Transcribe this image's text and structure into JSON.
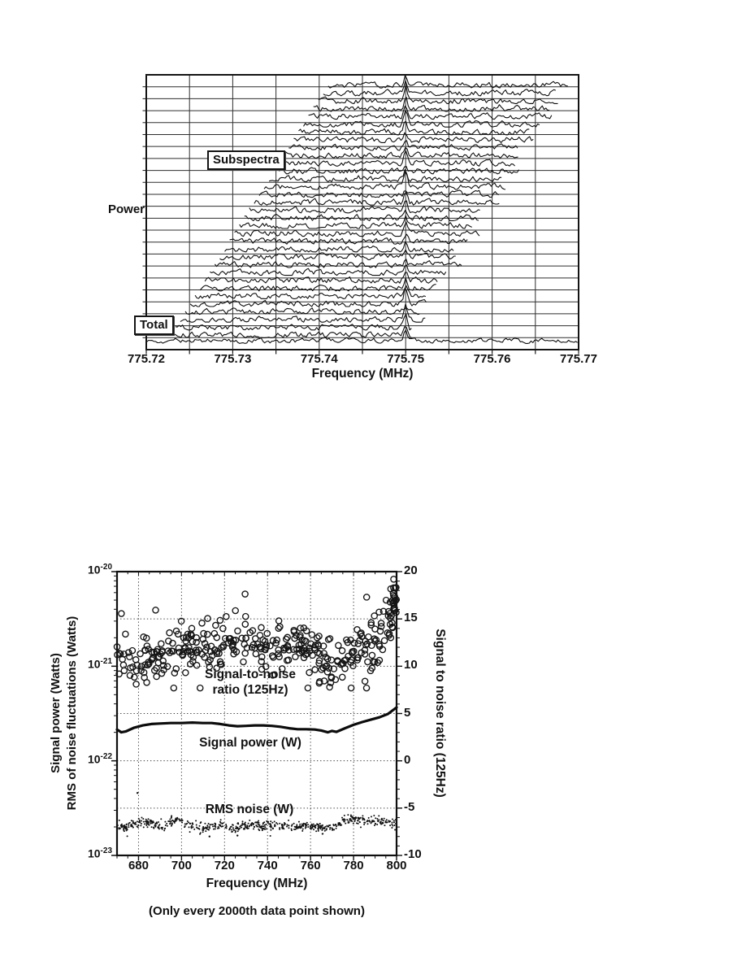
{
  "page": {
    "background": "#ffffff",
    "ink": "#111111"
  },
  "chart_data": [
    {
      "id": "subspectra-waterfall",
      "type": "line",
      "title": "",
      "xlabel": "Frequency (MHz)",
      "ylabel": "Power",
      "xlim": [
        775.72,
        775.77
      ],
      "xticks": [
        775.72,
        775.73,
        775.74,
        775.75,
        775.76,
        775.77
      ],
      "xtick_labels": [
        "775.72",
        "775.73",
        "775.74",
        "775.75",
        "775.76",
        "775.77"
      ],
      "x_grid_step_mhz": 0.005,
      "y_gridline_rows": 23,
      "grid": "solid",
      "legend_position": "none",
      "annotations": {
        "subspectra": "Subspectra",
        "total": "Total"
      },
      "series": [
        {
          "name": "Subspectra",
          "style": "stacked offset noise traces (waterfall)",
          "trace_count": 33,
          "first_window_start_mhz": 775.7228,
          "window_shift_per_trace_mhz": 0.00057,
          "window_width_mhz": 0.0275,
          "signal_peak_mhz": 775.75
        },
        {
          "name": "Total",
          "style": "single noise trace at bottom",
          "window_mhz": [
            775.72,
            775.77
          ],
          "signal_peak_mhz": 775.75
        }
      ]
    },
    {
      "id": "signal-power-noise-snr",
      "type": "scatter",
      "title": "",
      "xlabel": "Frequency (MHz)",
      "ylabel_left_line1": "Signal power (Watts)",
      "ylabel_left_line2": "RMS of noise fluctuations (Watts)",
      "ylabel_right": "Signal to noise ratio (125Hz)",
      "xlim": [
        670,
        800
      ],
      "xticks": [
        680,
        700,
        720,
        740,
        760,
        780,
        800
      ],
      "x_minor_step_mhz": 5,
      "ylim_left_watts": [
        1e-23,
        1e-20
      ],
      "yticks_left": [
        {
          "base": "10",
          "exp": "-20"
        },
        {
          "base": "10",
          "exp": "-21"
        },
        {
          "base": "10",
          "exp": "-22"
        },
        {
          "base": "10",
          "exp": "-23"
        }
      ],
      "ylim_right": [
        -10,
        20
      ],
      "yticks_right": [
        "20",
        "15",
        "10",
        "5",
        "0",
        "-5",
        "-10"
      ],
      "grid": "dotted",
      "note": "(Only every 2000th data point shown)",
      "series": [
        {
          "name": "Signal-to-noise ratio (125Hz)",
          "label_lines": [
            "Signal-to-noise",
            "ratio (125Hz)"
          ],
          "axis": "right",
          "marker": "open-circle",
          "n_points": 360,
          "spread_snr": 1.35,
          "trend_snr": [
            [
              670,
              11.8
            ],
            [
              674,
              10.9
            ],
            [
              678,
              10.6
            ],
            [
              682,
              10.4
            ],
            [
              686,
              10.4
            ],
            [
              690,
              10.7
            ],
            [
              694,
              11.2
            ],
            [
              698,
              11.6
            ],
            [
              702,
              12.0
            ],
            [
              706,
              12.4
            ],
            [
              710,
              12.4
            ],
            [
              714,
              12.0
            ],
            [
              718,
              12.3
            ],
            [
              722,
              12.6
            ],
            [
              726,
              13.0
            ],
            [
              730,
              13.2
            ],
            [
              734,
              12.6
            ],
            [
              738,
              12.1
            ],
            [
              742,
              12.0
            ],
            [
              746,
              12.2
            ],
            [
              750,
              12.2
            ],
            [
              754,
              12.0
            ],
            [
              758,
              11.8
            ],
            [
              762,
              11.5
            ],
            [
              766,
              11.0
            ],
            [
              770,
              10.4
            ],
            [
              774,
              10.7
            ],
            [
              778,
              11.2
            ],
            [
              782,
              11.6
            ],
            [
              786,
              11.9
            ],
            [
              790,
              12.6
            ],
            [
              794,
              13.6
            ],
            [
              797,
              15.2
            ],
            [
              799,
              16.8
            ],
            [
              800,
              17.5
            ]
          ],
          "edge_cluster": {
            "x0": 796,
            "x1": 800,
            "n": 26,
            "spread_snr": 1.2
          }
        },
        {
          "name": "Signal power (W)",
          "axis": "left",
          "style": "thick solid line",
          "points_watts": [
            [
              670,
              2.14e-22
            ],
            [
              672,
              2e-22
            ],
            [
              674,
              2.04e-22
            ],
            [
              678,
              2.24e-22
            ],
            [
              682,
              2.37e-22
            ],
            [
              686,
              2.45e-22
            ],
            [
              690,
              2.48e-22
            ],
            [
              695,
              2.51e-22
            ],
            [
              700,
              2.51e-22
            ],
            [
              705,
              2.54e-22
            ],
            [
              710,
              2.51e-22
            ],
            [
              714,
              2.51e-22
            ],
            [
              718,
              2.45e-22
            ],
            [
              722,
              2.37e-22
            ],
            [
              726,
              2.32e-22
            ],
            [
              730,
              2.34e-22
            ],
            [
              734,
              2.37e-22
            ],
            [
              738,
              2.37e-22
            ],
            [
              742,
              2.34e-22
            ],
            [
              746,
              2.29e-22
            ],
            [
              750,
              2.21e-22
            ],
            [
              754,
              2.16e-22
            ],
            [
              758,
              2.16e-22
            ],
            [
              762,
              2.14e-22
            ],
            [
              765,
              2.09e-22
            ],
            [
              768,
              2e-22
            ],
            [
              770,
              2.07e-22
            ],
            [
              772,
              2.02e-22
            ],
            [
              774,
              2.11e-22
            ],
            [
              776,
              2.21e-22
            ],
            [
              780,
              2.4e-22
            ],
            [
              784,
              2.57e-22
            ],
            [
              788,
              2.72e-22
            ],
            [
              792,
              2.88e-22
            ],
            [
              796,
              3.13e-22
            ],
            [
              800,
              3.67e-22
            ]
          ]
        },
        {
          "name": "RMS noise (W)",
          "axis": "left",
          "marker": "dot",
          "n_points": 680,
          "spread_snr": 0.23,
          "trend_watts": [
            [
              670,
              2.04e-23
            ],
            [
              673,
              1.95e-23
            ],
            [
              676,
              2.09e-23
            ],
            [
              680,
              2.24e-23
            ],
            [
              684,
              2.24e-23
            ],
            [
              688,
              2.14e-23
            ],
            [
              691,
              1.95e-23
            ],
            [
              694,
              2.09e-23
            ],
            [
              696,
              2.4e-23
            ],
            [
              699,
              2.34e-23
            ],
            [
              702,
              2.19e-23
            ],
            [
              706,
              2.09e-23
            ],
            [
              709,
              1.91e-23
            ],
            [
              712,
              1.95e-23
            ],
            [
              715,
              2.04e-23
            ],
            [
              718,
              2.09e-23
            ],
            [
              721,
              2e-23
            ],
            [
              724,
              1.86e-23
            ],
            [
              727,
              2.04e-23
            ],
            [
              730,
              2.09e-23
            ],
            [
              734,
              2.09e-23
            ],
            [
              738,
              2.04e-23
            ],
            [
              742,
              2.09e-23
            ],
            [
              746,
              2.04e-23
            ],
            [
              750,
              2.04e-23
            ],
            [
              754,
              2e-23
            ],
            [
              758,
              2.04e-23
            ],
            [
              762,
              2e-23
            ],
            [
              766,
              1.86e-23
            ],
            [
              769,
              1.95e-23
            ],
            [
              772,
              2.04e-23
            ],
            [
              775,
              2.34e-23
            ],
            [
              778,
              2.4e-23
            ],
            [
              782,
              2.4e-23
            ],
            [
              786,
              2.34e-23
            ],
            [
              790,
              2.34e-23
            ],
            [
              794,
              2.29e-23
            ],
            [
              798,
              2.19e-23
            ],
            [
              800,
              2.14e-23
            ]
          ],
          "stray_points_snr": [
            [
              679.5,
              -3.4
            ],
            [
              713,
              -8.0
            ],
            [
              726,
              -7.9
            ]
          ]
        }
      ]
    }
  ]
}
